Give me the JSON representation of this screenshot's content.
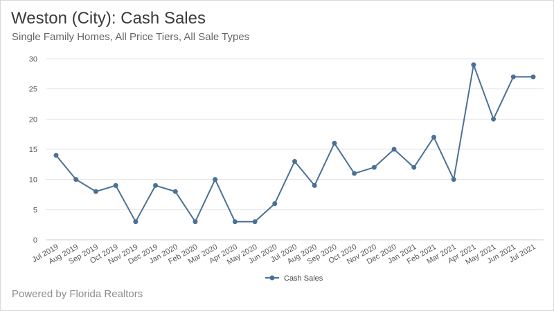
{
  "header": {
    "title": "Weston (City): Cash Sales",
    "subtitle": "Single Family Homes, All Price Tiers, All Sale Types"
  },
  "footer": {
    "text": "Powered by Florida Realtors"
  },
  "colors": {
    "series": "#4a7194",
    "grid": "#e3e3e3",
    "axis": "#cccccc"
  },
  "chart_data": {
    "type": "line",
    "title": "Weston (City): Cash Sales",
    "subtitle": "Single Family Homes, All Price Tiers, All Sale Types",
    "xlabel": "",
    "ylabel": "",
    "ylim": [
      0,
      30
    ],
    "yticks": [
      "0",
      "5",
      "10",
      "15",
      "20",
      "25",
      "30"
    ],
    "grid": true,
    "legend_position": "bottom-center",
    "categories": [
      "Jul 2019",
      "Aug 2019",
      "Sep 2019",
      "Oct 2019",
      "Nov 2019",
      "Dec 2019",
      "Jan 2020",
      "Feb 2020",
      "Mar 2020",
      "Apr 2020",
      "May 2020",
      "Jun 2020",
      "Jul 2020",
      "Aug 2020",
      "Sep 2020",
      "Oct 2020",
      "Nov 2020",
      "Dec 2020",
      "Jan 2021",
      "Feb 2021",
      "Mar 2021",
      "Apr 2021",
      "May 2021",
      "Jun 2021",
      "Jul 2021"
    ],
    "series": [
      {
        "name": "Cash Sales",
        "values": [
          14,
          10,
          8,
          9,
          3,
          9,
          8,
          3,
          10,
          3,
          3,
          6,
          13,
          9,
          16,
          11,
          12,
          15,
          12,
          17,
          10,
          29,
          20,
          27,
          27
        ]
      }
    ]
  }
}
